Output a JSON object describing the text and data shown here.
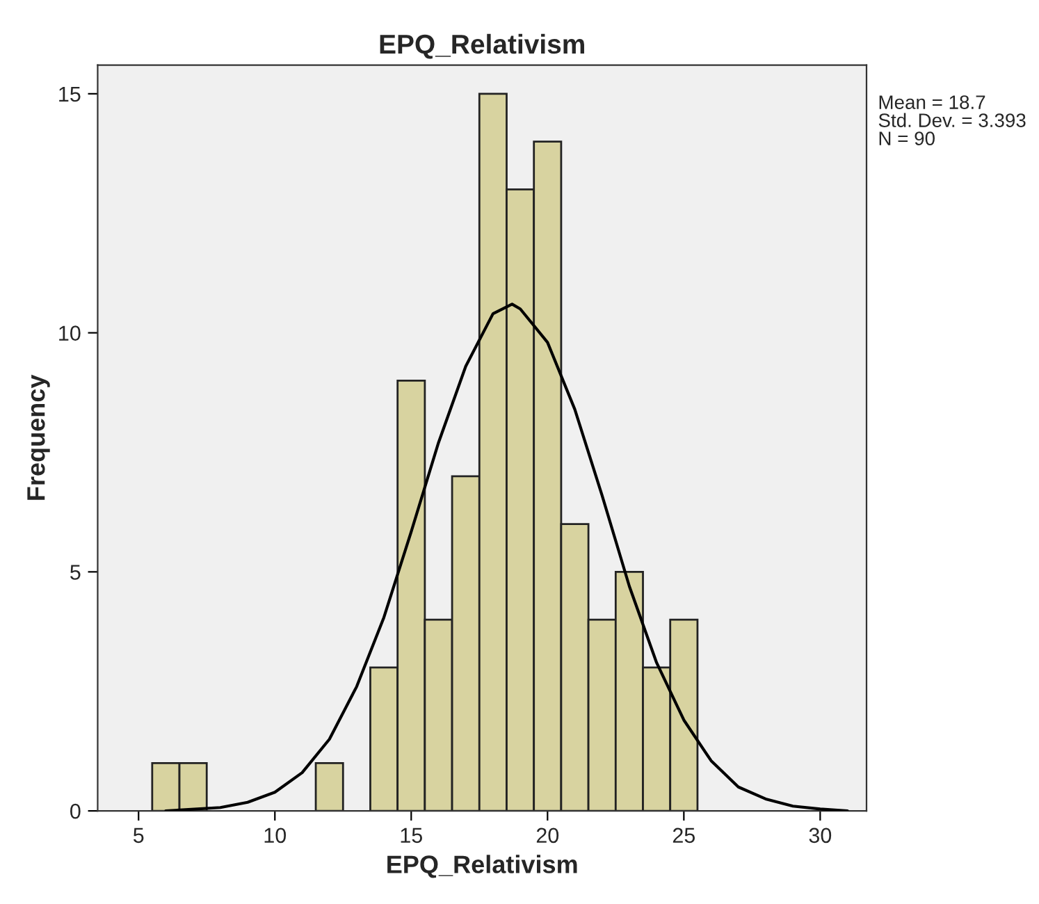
{
  "chart_data": {
    "type": "histogram",
    "title": "EPQ_Relativism",
    "xlabel": "EPQ_Relativism",
    "ylabel": "Frequency",
    "bins": [
      5.5,
      6.5,
      7.5,
      8.5,
      9.5,
      10.5,
      11.5,
      12.5,
      13.5,
      14.5,
      15.5,
      16.5,
      17.5,
      18.5,
      19.5,
      20.5,
      21.5,
      22.5,
      23.5,
      24.5,
      25.5
    ],
    "values": [
      1,
      1,
      0,
      0,
      0,
      0,
      1,
      0,
      3,
      9,
      4,
      7,
      15,
      13,
      14,
      6,
      4,
      5,
      3,
      4
    ],
    "color": "#d8d3a0",
    "series": [
      {
        "type": "line",
        "color": "#000000",
        "x": [
          6,
          8,
          9,
          10,
          11,
          12,
          13,
          14,
          15,
          16,
          17,
          18,
          18.7,
          19,
          20,
          21,
          22,
          23,
          24,
          25,
          26,
          27,
          28,
          29,
          30,
          31
        ],
        "values": [
          0,
          0.07,
          0.18,
          0.39,
          0.8,
          1.5,
          2.6,
          4.05,
          5.84,
          7.7,
          9.3,
          10.4,
          10.6,
          10.5,
          9.8,
          8.4,
          6.6,
          4.7,
          3.1,
          1.9,
          1.05,
          0.5,
          0.25,
          0.1,
          0.04,
          0
        ]
      }
    ],
    "xlim": [
      3.5,
      31.7
    ],
    "xticks": [
      5,
      10,
      15,
      20,
      25,
      30
    ],
    "ylim": [
      0,
      15.6
    ],
    "yticks": [
      0,
      5,
      10,
      15
    ],
    "grid": false,
    "legend": false,
    "annotations": [
      "Mean = 18.7",
      "Std. Dev. = 3.393",
      "N = 90"
    ]
  }
}
